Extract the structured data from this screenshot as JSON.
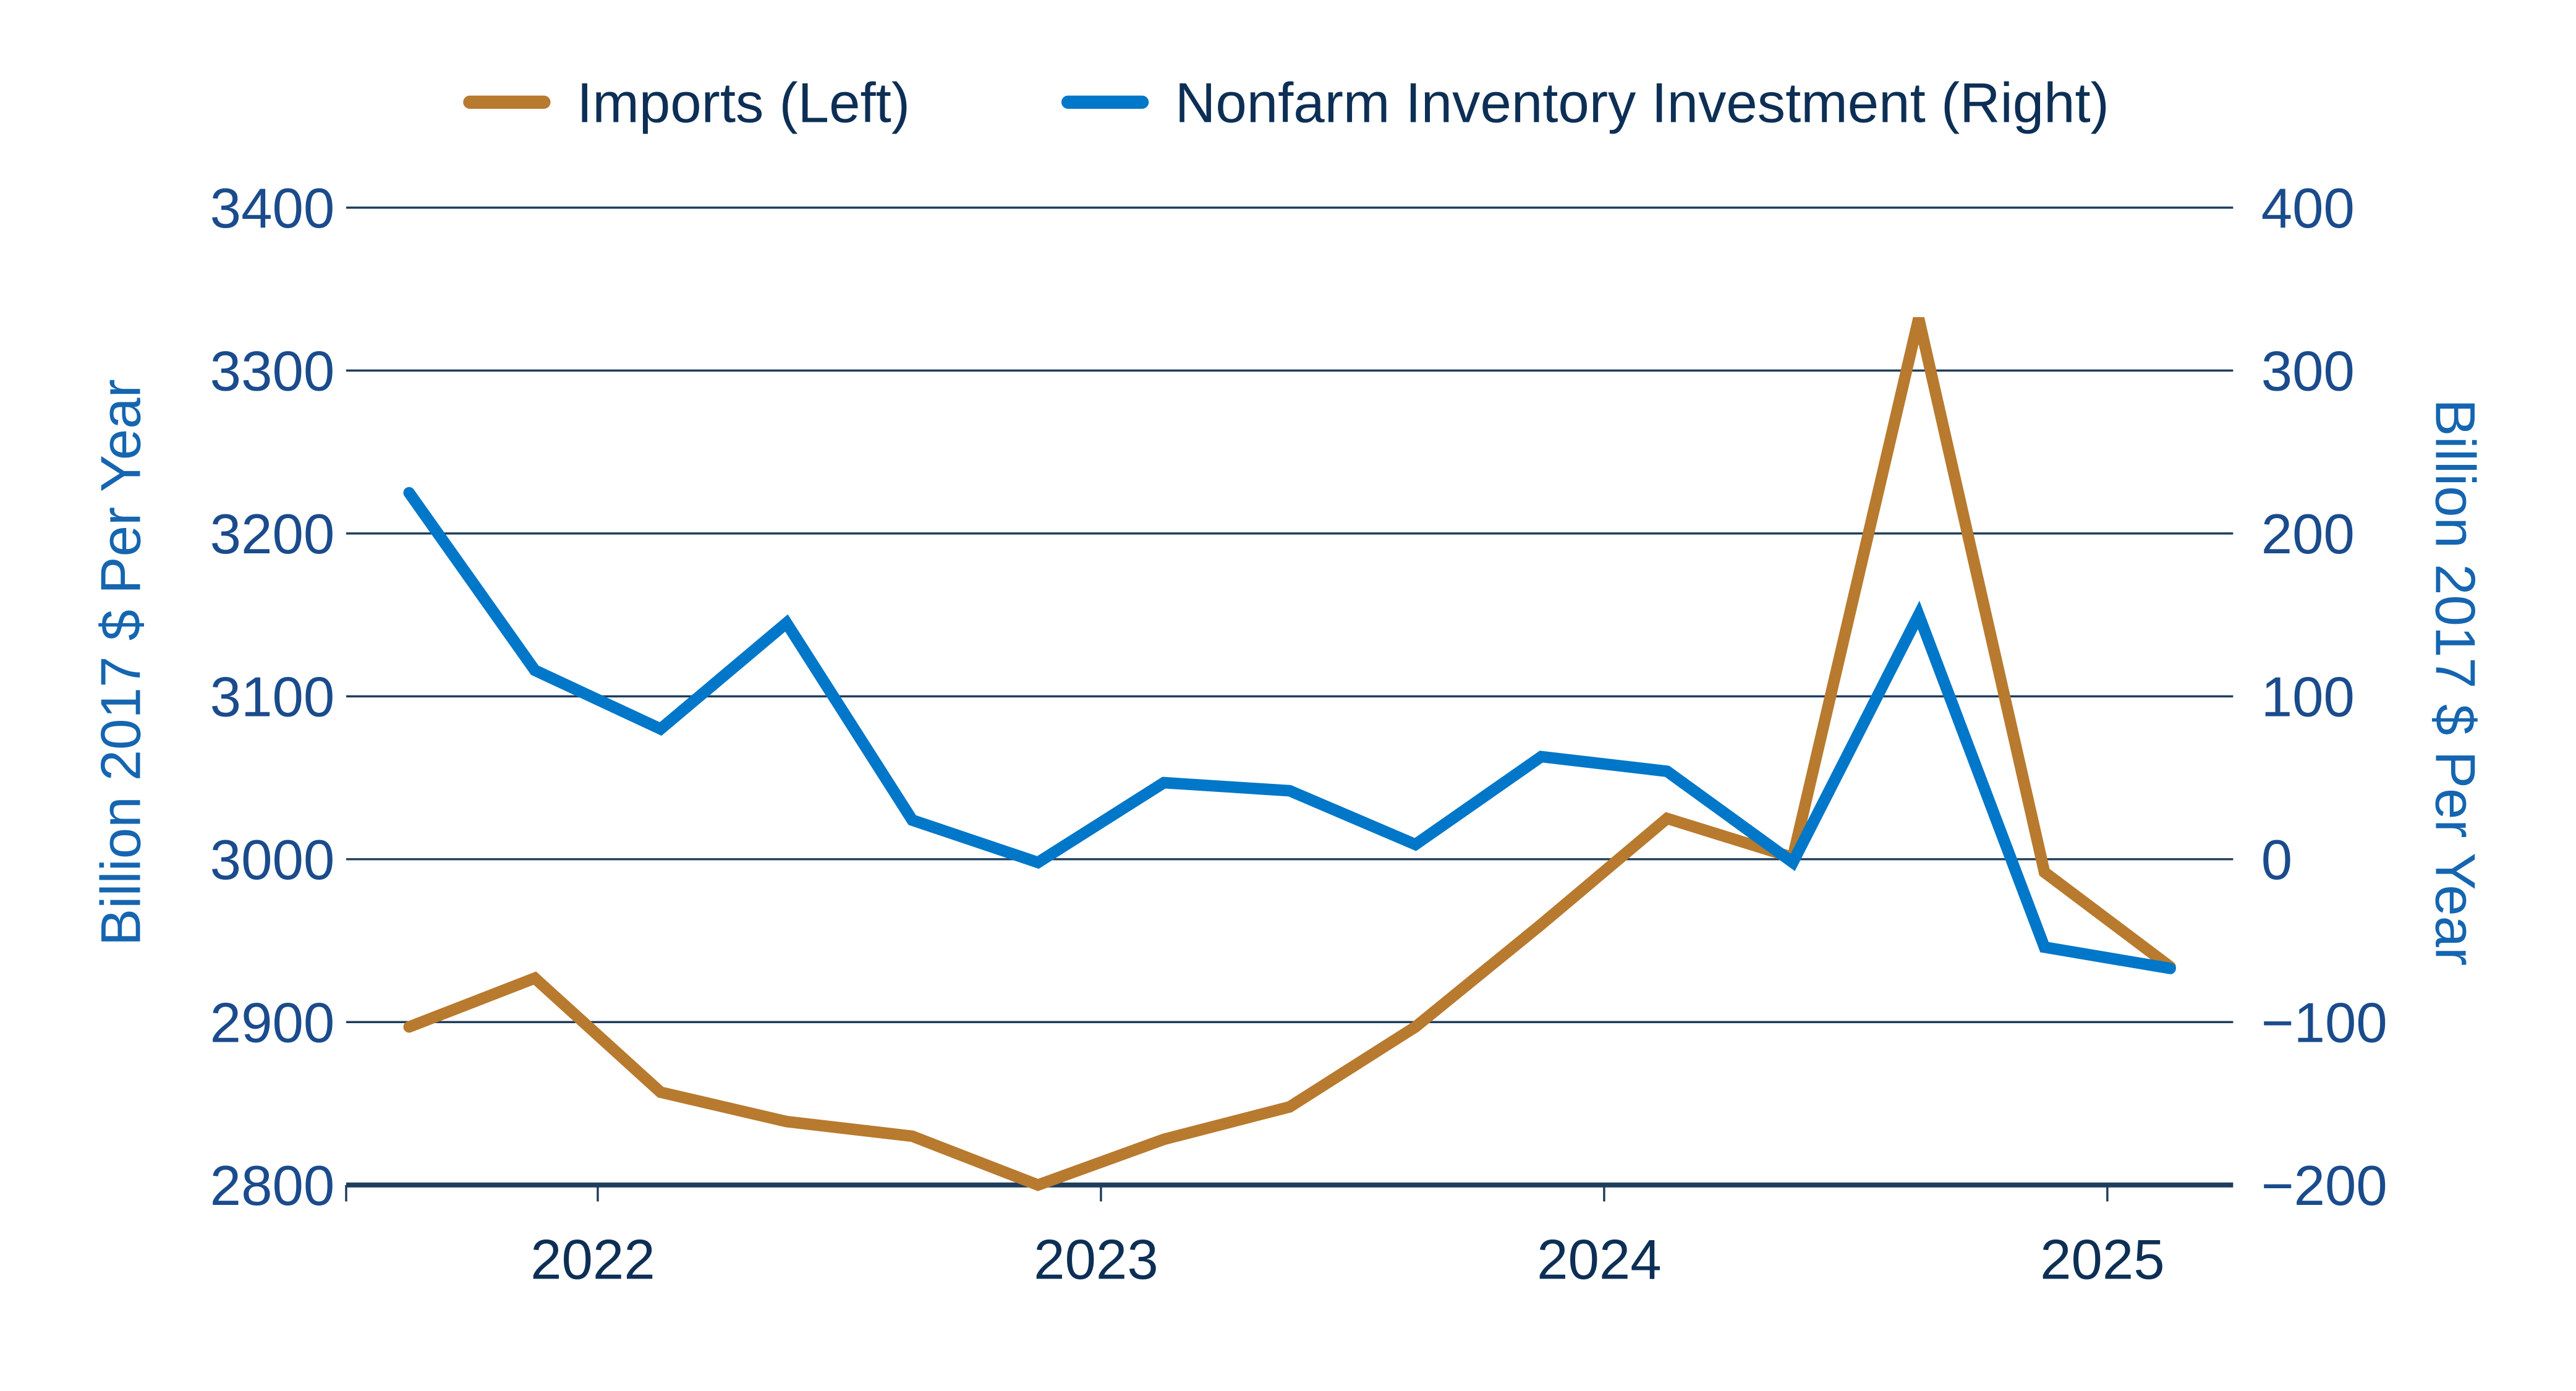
{
  "colors": {
    "imports": "#b87a2e",
    "inventory": "#0077c8",
    "grid": "#1f3d5c",
    "axis_text": "#1a4b8c",
    "legend_text": "#0d2f55"
  },
  "chart_data": {
    "type": "line",
    "title": "",
    "legend": {
      "placement": "top",
      "entries": [
        "Imports (Left)",
        "Nonfarm Inventory Investment (Right)"
      ]
    },
    "x": [
      "2021Q3",
      "2021Q4",
      "2022Q1",
      "2022Q2",
      "2022Q3",
      "2022Q4",
      "2023Q1",
      "2023Q2",
      "2023Q3",
      "2023Q4",
      "2024Q1",
      "2024Q2",
      "2024Q3",
      "2024Q4",
      "2025Q1"
    ],
    "x_ticks": [
      {
        "label": "2022",
        "at": 1.5
      },
      {
        "label": "2023",
        "at": 5.5
      },
      {
        "label": "2024",
        "at": 9.5
      },
      {
        "label": "2025",
        "at": 13.5
      }
    ],
    "xlim": [
      -0.5,
      14.5
    ],
    "series": [
      {
        "name": "Imports (Left)",
        "axis": "left",
        "values": [
          2897,
          2927,
          2857,
          2839,
          2830,
          2800,
          2828,
          2848,
          2897,
          2960,
          3025,
          3001,
          3332,
          2992,
          2934
        ]
      },
      {
        "name": "Nonfarm Inventory Investment (Right)",
        "axis": "right",
        "values": [
          225,
          116,
          80,
          145,
          24,
          -2,
          47,
          42,
          9,
          63,
          54,
          -2,
          150,
          -54,
          -67
        ]
      }
    ],
    "left_axis": {
      "label": "Billion 2017 $ Per Year",
      "ylim": [
        2800,
        3400
      ],
      "ticks": [
        "3400",
        "3300",
        "3200",
        "3100",
        "3000",
        "2900",
        "2800"
      ]
    },
    "right_axis": {
      "label": "Billion 2017 $ Per Year",
      "ylim": [
        -200,
        400
      ],
      "ticks": [
        "400",
        "300",
        "200",
        "100",
        "0",
        "−100",
        "−200"
      ]
    },
    "grid": true
  }
}
